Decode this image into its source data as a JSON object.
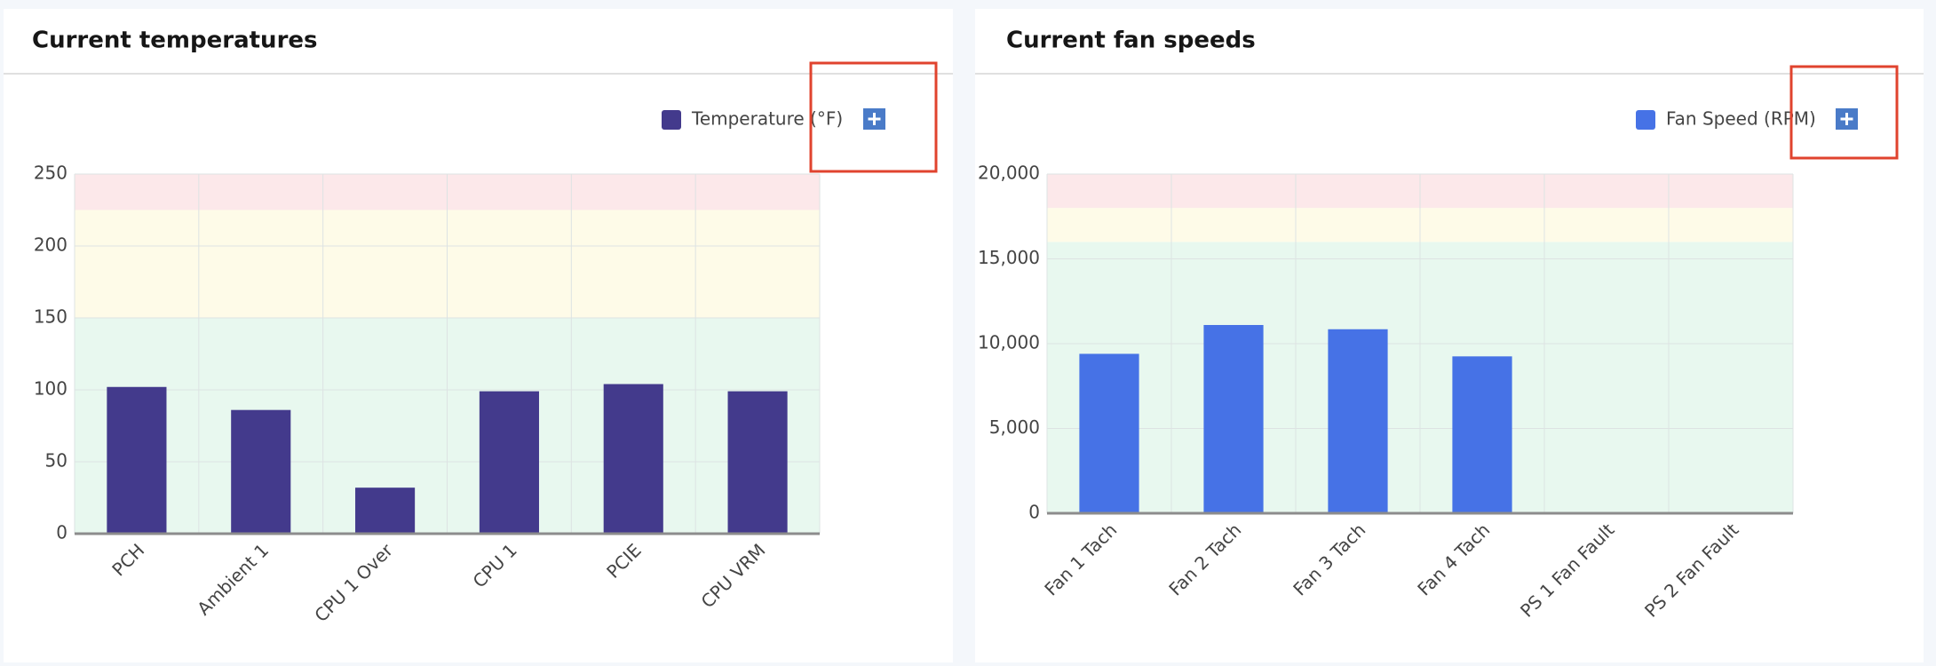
{
  "chart_data": [
    {
      "type": "bar",
      "title": "Current temperatures",
      "categories": [
        "PCH",
        "Ambient 1",
        "CPU 1 Over",
        "CPU 1",
        "PCIE",
        "CPU VRM"
      ],
      "series": [
        {
          "name": "Temperature (°F)",
          "color": "#433a8c",
          "values": [
            102,
            86,
            32,
            99,
            104,
            99
          ]
        }
      ],
      "ylim": [
        0,
        250
      ],
      "yticks": [
        0,
        50,
        100,
        150,
        200,
        250
      ],
      "grid": true,
      "bands": [
        {
          "from": 0,
          "to": 150,
          "color": "#e8f8ef"
        },
        {
          "from": 150,
          "to": 225,
          "color": "#fefbe8"
        },
        {
          "from": 225,
          "to": 250,
          "color": "#fce8ea"
        }
      ],
      "legend": "top-right"
    },
    {
      "type": "bar",
      "title": "Current fan speeds",
      "categories": [
        "Fan 1 Tach",
        "Fan 2 Tach",
        "Fan 3 Tach",
        "Fan 4 Tach",
        "PS 1 Fan Fault",
        "PS 2 Fan Fault"
      ],
      "series": [
        {
          "name": "Fan Speed (RPM)",
          "color": "#4672e6",
          "values": [
            9400,
            11100,
            10850,
            9250,
            0,
            0
          ]
        }
      ],
      "ylim": [
        0,
        20000
      ],
      "yticks": [
        0,
        {
          "value": 5000,
          "label": "5,000"
        },
        {
          "value": 10000,
          "label": "10,000"
        },
        {
          "value": 15000,
          "label": "15,000"
        },
        {
          "value": 20000,
          "label": "20,000"
        }
      ],
      "grid": true,
      "bands": [
        {
          "from": 0,
          "to": 16000,
          "color": "#e8f8ef"
        },
        {
          "from": 16000,
          "to": 18000,
          "color": "#fefbe8"
        },
        {
          "from": 18000,
          "to": 20000,
          "color": "#fce8ea"
        }
      ],
      "legend": "top-right"
    }
  ]
}
